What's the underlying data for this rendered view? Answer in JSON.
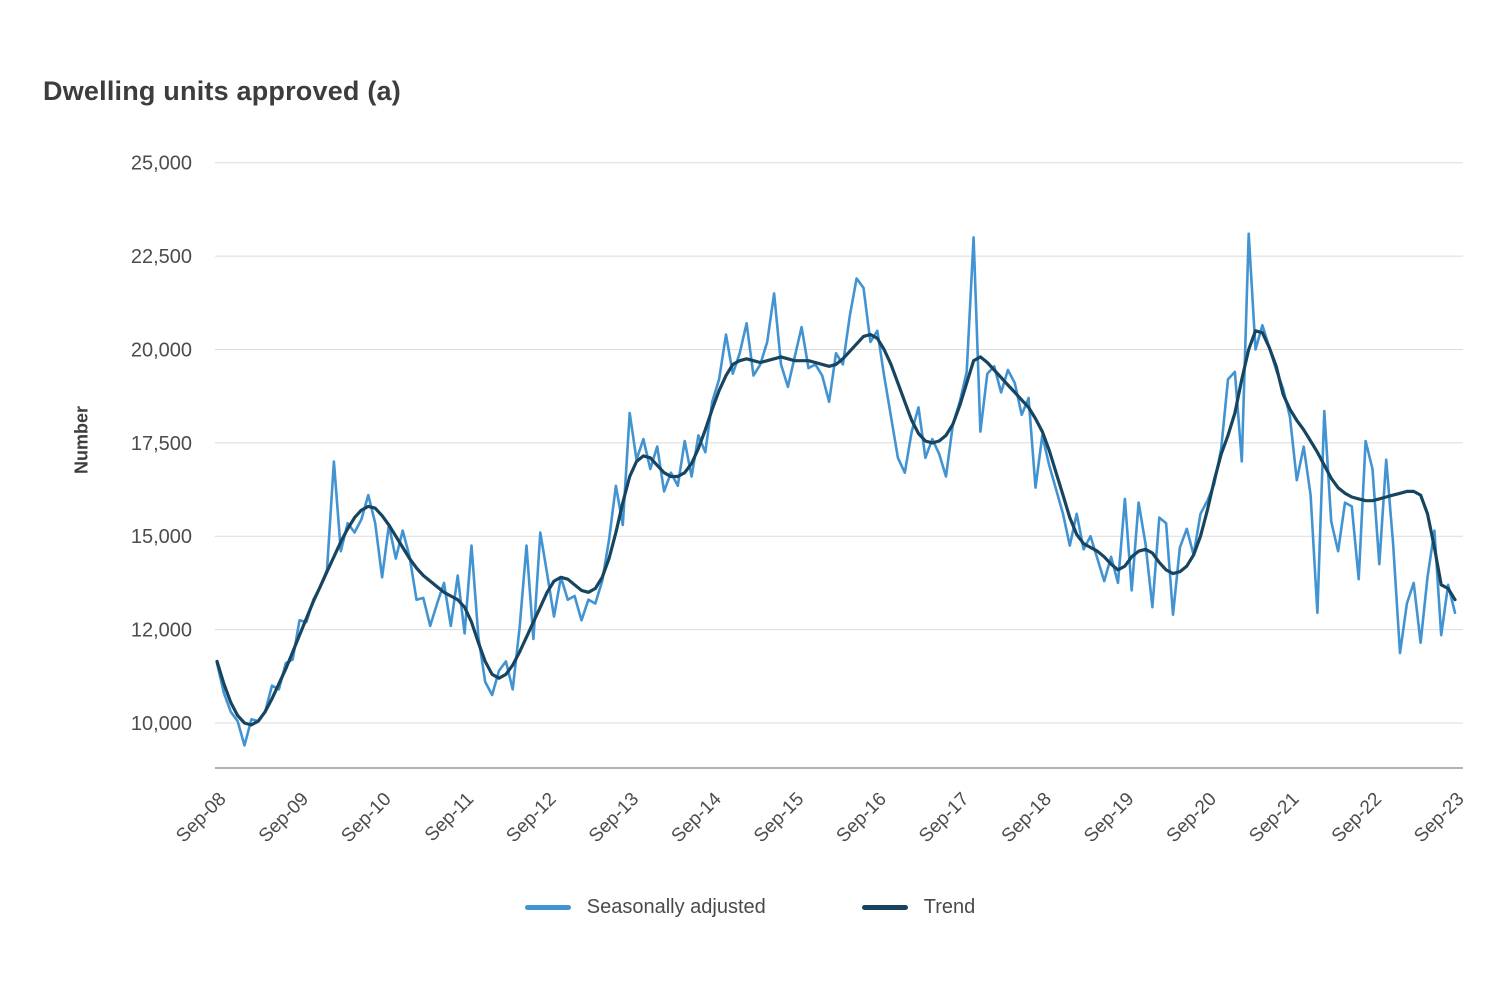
{
  "title": "Dwelling units approved (a)",
  "y_axis": {
    "label": "Number",
    "tick_labels": [
      "25,000",
      "22,500",
      "20,000",
      "17,500",
      "15,000",
      "12,000",
      "10,000"
    ]
  },
  "x_axis": {
    "tick_labels": [
      "Sep-08",
      "Sep-09",
      "Sep-10",
      "Sep-11",
      "Sep-12",
      "Sep-13",
      "Sep-14",
      "Sep-15",
      "Sep-16",
      "Sep-17",
      "Sep-18",
      "Sep-19",
      "Sep-20",
      "Sep-21",
      "Sep-22",
      "Sep-23"
    ]
  },
  "legend": {
    "items": [
      {
        "label": "Seasonally adjusted",
        "color": "#4293d2"
      },
      {
        "label": "Trend",
        "color": "#17455f"
      }
    ]
  },
  "colors": {
    "seasonally_adjusted": "#4293d2",
    "trend": "#17455f",
    "gridline": "#dbdbdb",
    "axis_line": "#999999",
    "tick_text": "#4c4c4c",
    "title_text": "#3d3d3d",
    "background": "#ffffff"
  },
  "chart_data": {
    "type": "line",
    "title": "Dwelling units approved (a)",
    "ylabel": "Number",
    "xlabel": "",
    "x_unit": "month",
    "x_range": [
      "Sep-2008",
      "Sep-2023"
    ],
    "ylim": [
      8800,
      25000
    ],
    "y_tick_interval": 2500,
    "grid": "horizontal",
    "legend_position": "bottom-center",
    "series": [
      {
        "name": "Seasonally adjusted",
        "color": "#4293d2",
        "values": [
          11600,
          10800,
          10300,
          10050,
          9400,
          10100,
          10050,
          10300,
          11000,
          10900,
          11600,
          11700,
          12750,
          12700,
          13300,
          13650,
          14100,
          17000,
          14600,
          15350,
          15100,
          15450,
          16100,
          15350,
          13900,
          15300,
          14400,
          15150,
          14450,
          13300,
          13350,
          12600,
          13200,
          13750,
          12600,
          13950,
          12400,
          14750,
          12300,
          11100,
          10750,
          11400,
          11650,
          10900,
          12550,
          14750,
          12250,
          15100,
          14000,
          12850,
          13900,
          13300,
          13400,
          12750,
          13300,
          13200,
          13800,
          14900,
          16350,
          15300,
          18300,
          17050,
          17600,
          16800,
          17400,
          16200,
          16700,
          16350,
          17550,
          16600,
          17700,
          17250,
          18600,
          19200,
          20400,
          19350,
          19900,
          20700,
          19300,
          19600,
          20200,
          21500,
          19600,
          19000,
          19800,
          20600,
          19500,
          19600,
          19300,
          18600,
          19900,
          19600,
          20900,
          21900,
          21650,
          20200,
          20500,
          19300,
          18200,
          17100,
          16700,
          17800,
          18450,
          17100,
          17600,
          17200,
          16600,
          18000,
          18600,
          19400,
          23000,
          17800,
          19350,
          19550,
          18850,
          19450,
          19100,
          18250,
          18700,
          16300,
          17700,
          16900,
          16250,
          15600,
          14750,
          15600,
          14650,
          15000,
          14400,
          13800,
          14450,
          13750,
          16000,
          13550,
          15900,
          14800,
          13100,
          15500,
          15350,
          12900,
          14700,
          15200,
          14500,
          15600,
          15950,
          16400,
          17350,
          19200,
          19400,
          17000,
          23100,
          20000,
          20650,
          20050,
          19450,
          18950,
          18200,
          16500,
          17400,
          16100,
          12950,
          18350,
          15400,
          14600,
          15900,
          15800,
          13850,
          17550,
          16800,
          14250,
          17050,
          14800,
          11870,
          13200,
          13750,
          12150,
          13900,
          15150,
          12350,
          13700,
          12950
        ]
      },
      {
        "name": "Trend",
        "color": "#17455f",
        "values": [
          11650,
          11050,
          10550,
          10200,
          10000,
          9950,
          10050,
          10300,
          10650,
          11050,
          11450,
          11900,
          12350,
          12800,
          13250,
          13650,
          14050,
          14450,
          14850,
          15200,
          15500,
          15700,
          15800,
          15750,
          15550,
          15300,
          15000,
          14700,
          14400,
          14150,
          13950,
          13800,
          13650,
          13500,
          13400,
          13300,
          13100,
          12700,
          12150,
          11650,
          11300,
          11200,
          11300,
          11550,
          11900,
          12300,
          12700,
          13100,
          13500,
          13800,
          13900,
          13850,
          13700,
          13550,
          13500,
          13600,
          13900,
          14400,
          15100,
          15900,
          16600,
          17000,
          17150,
          17100,
          16900,
          16700,
          16600,
          16600,
          16700,
          16950,
          17350,
          17850,
          18400,
          18900,
          19300,
          19600,
          19700,
          19750,
          19700,
          19650,
          19700,
          19750,
          19800,
          19750,
          19700,
          19700,
          19700,
          19650,
          19600,
          19550,
          19600,
          19750,
          19950,
          20150,
          20350,
          20400,
          20300,
          20000,
          19600,
          19100,
          18600,
          18100,
          17750,
          17550,
          17500,
          17550,
          17700,
          18000,
          18500,
          19100,
          19700,
          19800,
          19650,
          19450,
          19250,
          19050,
          18850,
          18650,
          18450,
          18150,
          17800,
          17300,
          16700,
          16100,
          15500,
          15050,
          14800,
          14700,
          14600,
          14450,
          14250,
          14100,
          14200,
          14450,
          14600,
          14650,
          14550,
          14300,
          14100,
          14000,
          14050,
          14200,
          14500,
          15000,
          15700,
          16500,
          17200,
          17700,
          18300,
          19200,
          20000,
          20500,
          20450,
          20050,
          19550,
          18800,
          18400,
          18100,
          17850,
          17550,
          17250,
          16900,
          16550,
          16300,
          16150,
          16050,
          16000,
          15950,
          15950,
          16000,
          16050,
          16100,
          16150,
          16200,
          16200,
          16100,
          15600,
          14700,
          13700,
          13600,
          13300
        ]
      }
    ]
  }
}
